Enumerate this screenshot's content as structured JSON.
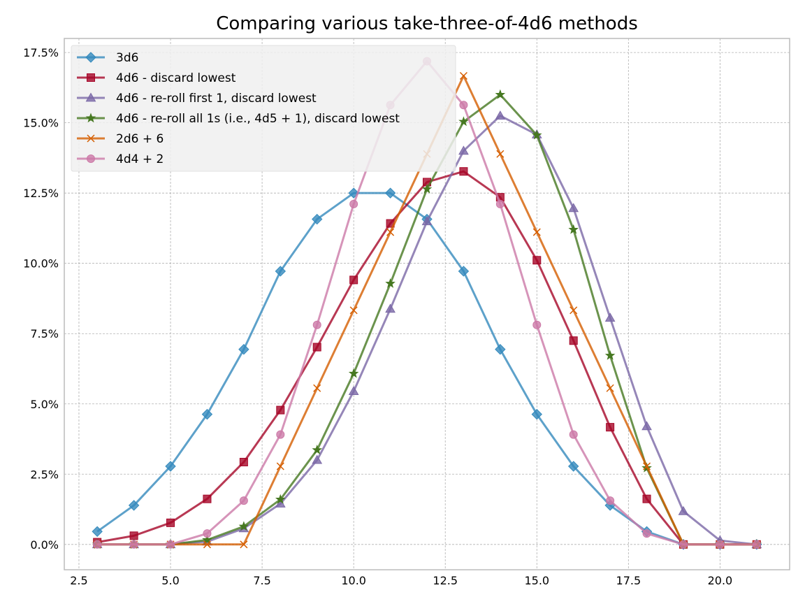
{
  "chart_data": {
    "type": "line",
    "title": "Comparing various take-three-of-4d6 methods",
    "xlabel": "",
    "ylabel": "",
    "xlim": [
      2.1,
      21.9
    ],
    "ylim": [
      -0.009,
      0.18
    ],
    "xticks": [
      2.5,
      5.0,
      7.5,
      10.0,
      12.5,
      15.0,
      17.5,
      20.0
    ],
    "xtick_labels": [
      "2.5",
      "5.0",
      "7.5",
      "10.0",
      "12.5",
      "15.0",
      "17.5",
      "20.0"
    ],
    "yticks": [
      0.0,
      0.025,
      0.05,
      0.075,
      0.1,
      0.125,
      0.15,
      0.175
    ],
    "ytick_labels": [
      "0.0%",
      "2.5%",
      "5.0%",
      "7.5%",
      "10.0%",
      "12.5%",
      "15.0%",
      "17.5%"
    ],
    "grid": true,
    "legend_position": "top-left",
    "x": [
      3,
      4,
      5,
      6,
      7,
      8,
      9,
      10,
      11,
      12,
      13,
      14,
      15,
      16,
      17,
      18,
      19,
      20,
      21
    ],
    "series": [
      {
        "name": "3d6",
        "color": "#348abd",
        "marker": "diamond",
        "values": [
          0.0046,
          0.0139,
          0.0278,
          0.0463,
          0.0694,
          0.0972,
          0.1157,
          0.125,
          0.125,
          0.1157,
          0.0972,
          0.0694,
          0.0463,
          0.0278,
          0.0139,
          0.0046,
          0,
          0,
          0
        ]
      },
      {
        "name": "4d6 - discard lowest",
        "color": "#a60628",
        "marker": "square",
        "values": [
          0.0008,
          0.0031,
          0.0077,
          0.0162,
          0.0293,
          0.0478,
          0.0702,
          0.0941,
          0.1142,
          0.1289,
          0.1327,
          0.1235,
          0.1011,
          0.0725,
          0.0417,
          0.0162,
          0,
          0,
          0
        ]
      },
      {
        "name": "4d6 - re-roll first 1, discard lowest",
        "color": "#7a68a6",
        "marker": "triangle",
        "values": [
          0.0,
          0.0,
          0.0,
          0.001,
          0.0057,
          0.0145,
          0.03,
          0.0545,
          0.0838,
          0.1149,
          0.14,
          0.1525,
          0.1458,
          0.1196,
          0.0806,
          0.042,
          0.0118,
          0.0014,
          0.0
        ]
      },
      {
        "name": "4d6 - re-roll all 1s (i.e., 4d5 + 1), discard lowest",
        "color": "#467821",
        "marker": "star",
        "values": [
          0.0,
          0.0,
          0.0,
          0.0016,
          0.0064,
          0.016,
          0.0336,
          0.0608,
          0.0928,
          0.1264,
          0.1504,
          0.16,
          0.1456,
          0.112,
          0.0672,
          0.0272,
          0.0,
          0.0,
          0.0
        ]
      },
      {
        "name": "2d6 + 6",
        "color": "#d55e00",
        "marker": "x",
        "values": [
          0.0,
          0.0,
          0.0,
          0.0,
          0.0,
          0.0278,
          0.0556,
          0.0833,
          0.1111,
          0.1389,
          0.1667,
          0.1389,
          0.1111,
          0.0833,
          0.0556,
          0.0278,
          0.0,
          0.0,
          0.0
        ]
      },
      {
        "name": "4d4 + 2",
        "color": "#cc79a7",
        "marker": "circle",
        "values": [
          0.0,
          0.0,
          0.0,
          0.0039,
          0.0156,
          0.0391,
          0.0781,
          0.1211,
          0.1563,
          0.1719,
          0.1563,
          0.1211,
          0.0781,
          0.0391,
          0.0156,
          0.0039,
          0.0,
          0.0,
          0.0
        ]
      }
    ]
  }
}
